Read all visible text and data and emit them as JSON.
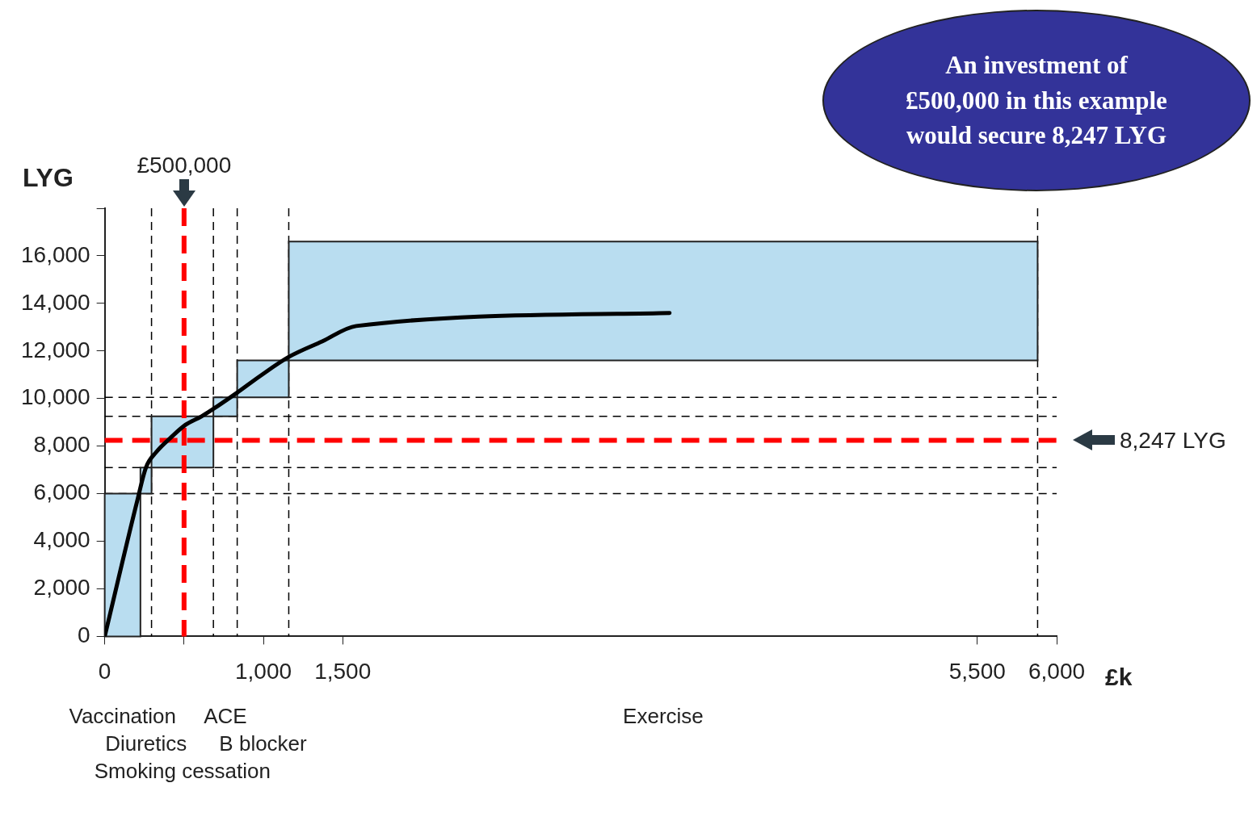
{
  "chart_data": {
    "type": "histogram",
    "xlabel": "£k",
    "ylabel": "LYG",
    "series": [
      {
        "bins": [
          0,
          225,
          295,
          685,
          835,
          1160,
          5880
        ],
        "base": [
          0,
          6000,
          7100,
          9250,
          10050,
          11600
        ],
        "values": [
          6000,
          1100,
          2150,
          800,
          1550,
          5000
        ],
        "color": "#b9ddf0"
      },
      {
        "type": "line",
        "x": [
          0,
          205,
          260,
          325,
          415,
          510,
          610,
          715,
          835,
          980,
          1160,
          1370,
          1585,
          3560
        ],
        "values": [
          0,
          5700,
          7100,
          7750,
          8350,
          8900,
          9250,
          9700,
          10250,
          10950,
          11750,
          12400,
          13050,
          13600
        ],
        "color": "#000000"
      }
    ],
    "xlim": [
      0,
      6000
    ],
    "xticks": [
      0,
      {
        "value": 500,
        "label": null
      },
      {
        "value": 1000,
        "label": "1,000"
      },
      {
        "value": 1500,
        "label": "1,500"
      },
      {
        "value": 5500,
        "label": "5,500"
      },
      {
        "value": 6000,
        "label": "6,000"
      }
    ],
    "ylim": [
      0,
      18000
    ],
    "yticks": [
      0,
      {
        "value": 2000,
        "label": "2,000"
      },
      {
        "value": 4000,
        "label": "4,000"
      },
      {
        "value": 6000,
        "label": "6,000"
      },
      {
        "value": 8000,
        "label": "8,000"
      },
      {
        "value": 10000,
        "label": "10,000"
      },
      {
        "value": 12000,
        "label": "12,000"
      },
      {
        "value": 14000,
        "label": "14,000"
      },
      {
        "value": 16000,
        "label": "16,000"
      },
      {
        "value": 18000,
        "label": null
      }
    ],
    "ref_lines": [
      {
        "axis": "y",
        "value": 6000,
        "color": "#000000",
        "line_style": "dashed"
      },
      {
        "axis": "y",
        "value": 7100,
        "color": "#000000",
        "line_style": "dashed"
      },
      {
        "axis": "y",
        "value": 9250,
        "color": "#000000",
        "line_style": "dashed"
      },
      {
        "axis": "y",
        "value": 10050,
        "color": "#000000",
        "line_style": "dashed"
      },
      {
        "axis": "x",
        "value": 295,
        "color": "#000000",
        "line_style": "dashed"
      },
      {
        "axis": "x",
        "value": 685,
        "color": "#000000",
        "line_style": "dashed"
      },
      {
        "axis": "x",
        "value": 835,
        "color": "#000000",
        "line_style": "dashed"
      },
      {
        "axis": "x",
        "value": 1160,
        "color": "#000000",
        "line_style": "dashed"
      },
      {
        "axis": "x",
        "value": 5880,
        "color": "#000000",
        "line_style": "dashed"
      },
      {
        "axis": "x",
        "value": 500,
        "label": "£500,000",
        "color": "#ff0000",
        "line_style": "dashed"
      },
      {
        "axis": "y",
        "value": 8247,
        "label": "8,247 LYG",
        "color": "#ff0000",
        "line_style": "dashed"
      }
    ],
    "annotations": [
      "Vaccination",
      "Diuretics",
      "Smoking cessation",
      "ACE",
      "B blocker",
      "Exercise",
      "An investment of £500,000 in this example would secure 8,247 LYG"
    ],
    "grid": false,
    "legend": false
  }
}
